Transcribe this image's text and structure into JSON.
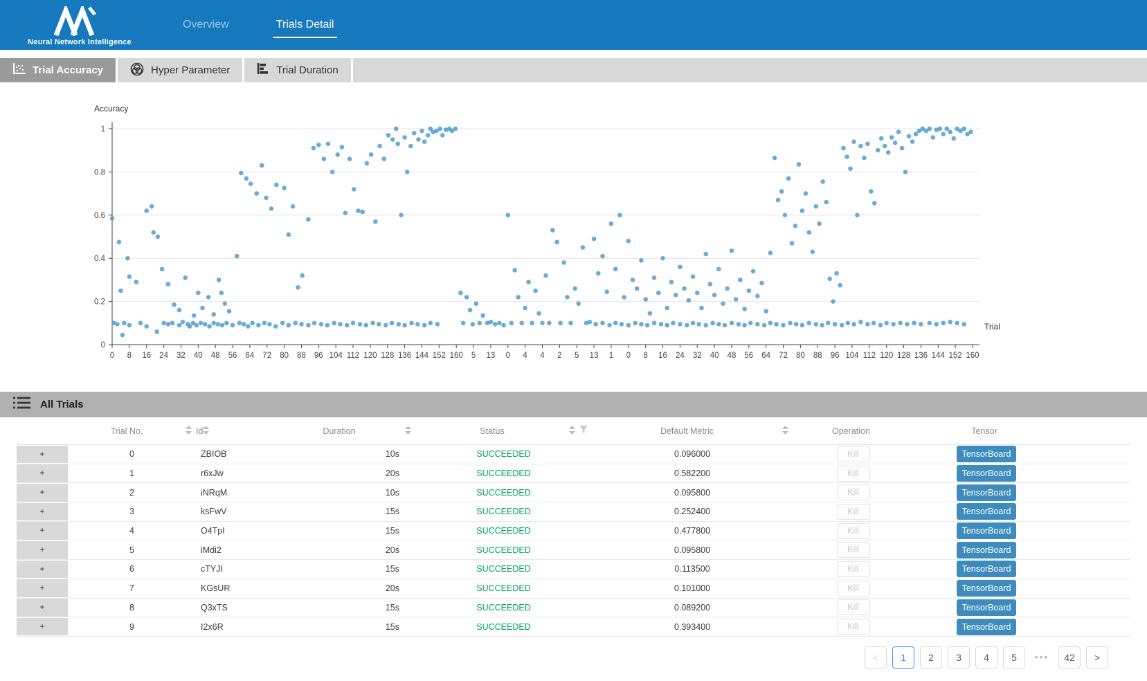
{
  "colors": {
    "brand_blue": "#1779bd",
    "point_blue": "#4f9dce",
    "status_green": "#00a45a",
    "tensorboard_blue": "#3e8cbd",
    "pagination_active_blue": "#2f96f5"
  },
  "header": {
    "logo": "nni-logo",
    "brand_caption": "Neural Network Intelligence",
    "tabs": [
      {
        "label": "Overview",
        "active": false
      },
      {
        "label": "Trials Detail",
        "active": true
      }
    ]
  },
  "subtabs": [
    {
      "label": "Trial Accuracy",
      "icon": "scatter-icon",
      "active": true
    },
    {
      "label": "Hyper Parameter",
      "icon": "venn-icon",
      "active": false
    },
    {
      "label": "Trial Duration",
      "icon": "duration-bars-icon",
      "active": false
    }
  ],
  "chart_data": {
    "type": "scatter",
    "title": "",
    "ylabel": "Accuracy",
    "xlabel": "Trial",
    "ylim": [
      0,
      1
    ],
    "grid": true,
    "y_ticks": [
      "0",
      "0.2",
      "0.4",
      "0.6",
      "0.8",
      "1"
    ],
    "x_tick_labels": [
      "0",
      "8",
      "16",
      "24",
      "32",
      "40",
      "48",
      "56",
      "64",
      "72",
      "80",
      "88",
      "96",
      "104",
      "112",
      "120",
      "128",
      "136",
      "144",
      "152",
      "160",
      "5",
      "13",
      "0",
      "4",
      "4",
      "2",
      "5",
      "13",
      "1",
      "0",
      "8",
      "16",
      "24",
      "32",
      "40",
      "48",
      "56",
      "64",
      "72",
      "80",
      "88",
      "96",
      "104",
      "112",
      "120",
      "128",
      "136",
      "144",
      "152",
      "160"
    ],
    "points": [
      [
        0,
        0.585
      ],
      [
        0.008,
        0.475
      ],
      [
        0.01,
        0.25
      ],
      [
        0.018,
        0.4
      ],
      [
        0.02,
        0.315
      ],
      [
        0.028,
        0.29
      ],
      [
        0.04,
        0.62
      ],
      [
        0.046,
        0.64
      ],
      [
        0.048,
        0.52
      ],
      [
        0.053,
        0.5
      ],
      [
        0.058,
        0.35
      ],
      [
        0.065,
        0.28
      ],
      [
        0.072,
        0.185
      ],
      [
        0.078,
        0.16
      ],
      [
        0.085,
        0.31
      ],
      [
        0.095,
        0.135
      ],
      [
        0.1,
        0.24
      ],
      [
        0.105,
        0.17
      ],
      [
        0.112,
        0.22
      ],
      [
        0.118,
        0.14
      ],
      [
        0.124,
        0.3
      ],
      [
        0.127,
        0.24
      ],
      [
        0.131,
        0.19
      ],
      [
        0.136,
        0.155
      ],
      [
        0.145,
        0.41
      ],
      [
        0.15,
        0.795
      ],
      [
        0.156,
        0.77
      ],
      [
        0.161,
        0.745
      ],
      [
        0.168,
        0.7
      ],
      [
        0.174,
        0.83
      ],
      [
        0.179,
        0.68
      ],
      [
        0.185,
        0.63
      ],
      [
        0.191,
        0.74
      ],
      [
        0.2,
        0.725
      ],
      [
        0.205,
        0.51
      ],
      [
        0.21,
        0.64
      ],
      [
        0.216,
        0.265
      ],
      [
        0.221,
        0.32
      ],
      [
        0.228,
        0.58
      ],
      [
        0.234,
        0.91
      ],
      [
        0.24,
        0.925
      ],
      [
        0.246,
        0.86
      ],
      [
        0.251,
        0.93
      ],
      [
        0.256,
        0.8
      ],
      [
        0.262,
        0.88
      ],
      [
        0.267,
        0.915
      ],
      [
        0.271,
        0.61
      ],
      [
        0.276,
        0.86
      ],
      [
        0.281,
        0.72
      ],
      [
        0.286,
        0.62
      ],
      [
        0.291,
        0.615
      ],
      [
        0.296,
        0.84
      ],
      [
        0.301,
        0.88
      ],
      [
        0.306,
        0.57
      ],
      [
        0.311,
        0.92
      ],
      [
        0.316,
        0.86
      ],
      [
        0.321,
        0.97
      ],
      [
        0.326,
        0.95
      ],
      [
        0.33,
        1.0
      ],
      [
        0.332,
        0.93
      ],
      [
        0.336,
        0.6
      ],
      [
        0.34,
        0.96
      ],
      [
        0.343,
        0.8
      ],
      [
        0.347,
        0.92
      ],
      [
        0.351,
        0.98
      ],
      [
        0.356,
        0.95
      ],
      [
        0.36,
        0.99
      ],
      [
        0.363,
        0.94
      ],
      [
        0.367,
        0.97
      ],
      [
        0.37,
        1.0
      ],
      [
        0.373,
        0.985
      ],
      [
        0.377,
        0.99
      ],
      [
        0.381,
        1.0
      ],
      [
        0.384,
        0.97
      ],
      [
        0.388,
        0.995
      ],
      [
        0.392,
        1.0
      ],
      [
        0.395,
        0.99
      ],
      [
        0.399,
        1.0
      ],
      [
        0.002,
        0.1
      ],
      [
        0.006,
        0.095
      ],
      [
        0.012,
        0.045
      ],
      [
        0.014,
        0.1
      ],
      [
        0.02,
        0.09
      ],
      [
        0.033,
        0.1
      ],
      [
        0.04,
        0.085
      ],
      [
        0.052,
        0.06
      ],
      [
        0.06,
        0.1
      ],
      [
        0.065,
        0.095
      ],
      [
        0.07,
        0.1
      ],
      [
        0.078,
        0.09
      ],
      [
        0.082,
        0.105
      ],
      [
        0.088,
        0.095
      ],
      [
        0.09,
        0.085
      ],
      [
        0.094,
        0.1
      ],
      [
        0.098,
        0.09
      ],
      [
        0.103,
        0.1
      ],
      [
        0.108,
        0.095
      ],
      [
        0.113,
        0.085
      ],
      [
        0.118,
        0.1
      ],
      [
        0.123,
        0.095
      ],
      [
        0.128,
        0.09
      ],
      [
        0.133,
        0.1
      ],
      [
        0.14,
        0.09
      ],
      [
        0.148,
        0.1
      ],
      [
        0.153,
        0.095
      ],
      [
        0.158,
        0.085
      ],
      [
        0.163,
        0.1
      ],
      [
        0.17,
        0.09
      ],
      [
        0.177,
        0.1
      ],
      [
        0.183,
        0.095
      ],
      [
        0.19,
        0.085
      ],
      [
        0.198,
        0.1
      ],
      [
        0.205,
        0.09
      ],
      [
        0.213,
        0.1
      ],
      [
        0.22,
        0.095
      ],
      [
        0.228,
        0.09
      ],
      [
        0.235,
        0.1
      ],
      [
        0.243,
        0.095
      ],
      [
        0.25,
        0.09
      ],
      [
        0.258,
        0.1
      ],
      [
        0.265,
        0.095
      ],
      [
        0.273,
        0.09
      ],
      [
        0.28,
        0.1
      ],
      [
        0.288,
        0.095
      ],
      [
        0.295,
        0.09
      ],
      [
        0.303,
        0.1
      ],
      [
        0.31,
        0.095
      ],
      [
        0.318,
        0.09
      ],
      [
        0.325,
        0.1
      ],
      [
        0.333,
        0.095
      ],
      [
        0.34,
        0.09
      ],
      [
        0.348,
        0.1
      ],
      [
        0.355,
        0.095
      ],
      [
        0.363,
        0.09
      ],
      [
        0.37,
        0.1
      ],
      [
        0.378,
        0.095
      ],
      [
        0.405,
        0.24
      ],
      [
        0.408,
        0.1
      ],
      [
        0.412,
        0.22
      ],
      [
        0.416,
        0.16
      ],
      [
        0.419,
        0.095
      ],
      [
        0.423,
        0.19
      ],
      [
        0.427,
        0.1
      ],
      [
        0.431,
        0.135
      ],
      [
        0.436,
        0.1
      ],
      [
        0.44,
        0.105
      ],
      [
        0.445,
        0.095
      ],
      [
        0.45,
        0.1
      ],
      [
        0.455,
        0.09
      ],
      [
        0.46,
        0.6
      ],
      [
        0.464,
        0.1
      ],
      [
        0.468,
        0.345
      ],
      [
        0.472,
        0.22
      ],
      [
        0.476,
        0.1
      ],
      [
        0.48,
        0.17
      ],
      [
        0.484,
        0.29
      ],
      [
        0.488,
        0.1
      ],
      [
        0.492,
        0.25
      ],
      [
        0.496,
        0.145
      ],
      [
        0.5,
        0.1
      ],
      [
        0.504,
        0.32
      ],
      [
        0.508,
        0.1
      ],
      [
        0.512,
        0.53
      ],
      [
        0.517,
        0.475
      ],
      [
        0.521,
        0.1
      ],
      [
        0.525,
        0.38
      ],
      [
        0.529,
        0.22
      ],
      [
        0.533,
        0.1
      ],
      [
        0.538,
        0.26
      ],
      [
        0.542,
        0.19
      ],
      [
        0.547,
        0.45
      ],
      [
        0.551,
        0.1
      ],
      [
        0.555,
        0.105
      ],
      [
        0.56,
        0.49
      ],
      [
        0.565,
        0.33
      ],
      [
        0.57,
        0.41
      ],
      [
        0.575,
        0.245
      ],
      [
        0.58,
        0.56
      ],
      [
        0.585,
        0.35
      ],
      [
        0.59,
        0.6
      ],
      [
        0.595,
        0.22
      ],
      [
        0.6,
        0.48
      ],
      [
        0.605,
        0.3
      ],
      [
        0.61,
        0.26
      ],
      [
        0.615,
        0.39
      ],
      [
        0.62,
        0.21
      ],
      [
        0.625,
        0.145
      ],
      [
        0.63,
        0.31
      ],
      [
        0.635,
        0.24
      ],
      [
        0.64,
        0.4
      ],
      [
        0.645,
        0.17
      ],
      [
        0.65,
        0.29
      ],
      [
        0.655,
        0.23
      ],
      [
        0.66,
        0.36
      ],
      [
        0.665,
        0.26
      ],
      [
        0.67,
        0.205
      ],
      [
        0.675,
        0.315
      ],
      [
        0.68,
        0.24
      ],
      [
        0.685,
        0.17
      ],
      [
        0.69,
        0.42
      ],
      [
        0.695,
        0.28
      ],
      [
        0.7,
        0.23
      ],
      [
        0.705,
        0.35
      ],
      [
        0.71,
        0.19
      ],
      [
        0.715,
        0.26
      ],
      [
        0.72,
        0.435
      ],
      [
        0.725,
        0.21
      ],
      [
        0.73,
        0.3
      ],
      [
        0.735,
        0.165
      ],
      [
        0.74,
        0.25
      ],
      [
        0.745,
        0.34
      ],
      [
        0.75,
        0.225
      ],
      [
        0.755,
        0.285
      ],
      [
        0.76,
        0.155
      ],
      [
        0.765,
        0.425
      ],
      [
        0.562,
        0.095
      ],
      [
        0.57,
        0.1
      ],
      [
        0.578,
        0.09
      ],
      [
        0.585,
        0.1
      ],
      [
        0.592,
        0.095
      ],
      [
        0.6,
        0.09
      ],
      [
        0.608,
        0.1
      ],
      [
        0.615,
        0.095
      ],
      [
        0.622,
        0.09
      ],
      [
        0.63,
        0.1
      ],
      [
        0.638,
        0.095
      ],
      [
        0.645,
        0.09
      ],
      [
        0.652,
        0.1
      ],
      [
        0.66,
        0.095
      ],
      [
        0.668,
        0.09
      ],
      [
        0.675,
        0.1
      ],
      [
        0.682,
        0.095
      ],
      [
        0.69,
        0.09
      ],
      [
        0.698,
        0.1
      ],
      [
        0.705,
        0.095
      ],
      [
        0.712,
        0.09
      ],
      [
        0.72,
        0.1
      ],
      [
        0.728,
        0.095
      ],
      [
        0.735,
        0.09
      ],
      [
        0.742,
        0.1
      ],
      [
        0.75,
        0.095
      ],
      [
        0.758,
        0.09
      ],
      [
        0.765,
        0.1
      ],
      [
        0.772,
        0.095
      ],
      [
        0.78,
        0.09
      ],
      [
        0.788,
        0.1
      ],
      [
        0.795,
        0.095
      ],
      [
        0.802,
        0.09
      ],
      [
        0.81,
        0.1
      ],
      [
        0.818,
        0.095
      ],
      [
        0.825,
        0.09
      ],
      [
        0.832,
        0.1
      ],
      [
        0.84,
        0.095
      ],
      [
        0.848,
        0.09
      ],
      [
        0.855,
        0.1
      ],
      [
        0.862,
        0.095
      ],
      [
        0.87,
        0.105
      ],
      [
        0.878,
        0.095
      ],
      [
        0.885,
        0.1
      ],
      [
        0.893,
        0.09
      ],
      [
        0.9,
        0.1
      ],
      [
        0.908,
        0.095
      ],
      [
        0.916,
        0.1
      ],
      [
        0.924,
        0.095
      ],
      [
        0.932,
        0.1
      ],
      [
        0.94,
        0.095
      ],
      [
        0.95,
        0.1
      ],
      [
        0.958,
        0.095
      ],
      [
        0.966,
        0.1
      ],
      [
        0.974,
        0.105
      ],
      [
        0.982,
        0.1
      ],
      [
        0.99,
        0.095
      ],
      [
        0.77,
        0.865
      ],
      [
        0.774,
        0.67
      ],
      [
        0.778,
        0.71
      ],
      [
        0.782,
        0.6
      ],
      [
        0.786,
        0.77
      ],
      [
        0.79,
        0.47
      ],
      [
        0.794,
        0.55
      ],
      [
        0.798,
        0.835
      ],
      [
        0.802,
        0.62
      ],
      [
        0.806,
        0.7
      ],
      [
        0.81,
        0.52
      ],
      [
        0.814,
        0.43
      ],
      [
        0.818,
        0.64
      ],
      [
        0.822,
        0.56
      ],
      [
        0.826,
        0.755
      ],
      [
        0.83,
        0.66
      ],
      [
        0.834,
        0.305
      ],
      [
        0.838,
        0.2
      ],
      [
        0.842,
        0.33
      ],
      [
        0.846,
        0.275
      ],
      [
        0.85,
        0.91
      ],
      [
        0.854,
        0.87
      ],
      [
        0.858,
        0.815
      ],
      [
        0.862,
        0.94
      ],
      [
        0.866,
        0.6
      ],
      [
        0.87,
        0.92
      ],
      [
        0.874,
        0.865
      ],
      [
        0.878,
        0.93
      ],
      [
        0.882,
        0.71
      ],
      [
        0.886,
        0.655
      ],
      [
        0.89,
        0.9
      ],
      [
        0.894,
        0.955
      ],
      [
        0.898,
        0.92
      ],
      [
        0.902,
        0.89
      ],
      [
        0.906,
        0.96
      ],
      [
        0.91,
        0.935
      ],
      [
        0.914,
        0.985
      ],
      [
        0.918,
        0.91
      ],
      [
        0.922,
        0.8
      ],
      [
        0.926,
        0.965
      ],
      [
        0.93,
        0.94
      ],
      [
        0.934,
        0.975
      ],
      [
        0.938,
        0.99
      ],
      [
        0.942,
        1.0
      ],
      [
        0.946,
        0.99
      ],
      [
        0.95,
        1.0
      ],
      [
        0.954,
        0.96
      ],
      [
        0.958,
        0.995
      ],
      [
        0.962,
        1.0
      ],
      [
        0.966,
        0.975
      ],
      [
        0.97,
        1.0
      ],
      [
        0.974,
        0.985
      ],
      [
        0.978,
        0.955
      ],
      [
        0.982,
        1.0
      ],
      [
        0.986,
        0.99
      ],
      [
        0.99,
        1.0
      ],
      [
        0.994,
        0.975
      ],
      [
        0.998,
        0.985
      ]
    ]
  },
  "table": {
    "section_title": "All Trials",
    "expand_symbol": "+",
    "columns": [
      {
        "label": "Trial No.",
        "sortable": true
      },
      {
        "label": "Id",
        "sortable": true
      },
      {
        "label": "Duration",
        "sortable": true
      },
      {
        "label": "Status",
        "sortable": true,
        "filterable": true
      },
      {
        "label": "Default Metric",
        "sortable": true
      },
      {
        "label": "Operation",
        "sortable": false
      },
      {
        "label": "Tensor",
        "sortable": false
      }
    ],
    "ops": {
      "kill_label": "Kill",
      "tensorboard_label": "TensorBoard"
    },
    "rows": [
      {
        "trial_no": "0",
        "id": "ZBIOB",
        "duration": "10s",
        "status": "SUCCEEDED",
        "metric": "0.096000"
      },
      {
        "trial_no": "1",
        "id": "r6xJw",
        "duration": "20s",
        "status": "SUCCEEDED",
        "metric": "0.582200"
      },
      {
        "trial_no": "2",
        "id": "iNRqM",
        "duration": "10s",
        "status": "SUCCEEDED",
        "metric": "0.095800"
      },
      {
        "trial_no": "3",
        "id": "ksFwV",
        "duration": "15s",
        "status": "SUCCEEDED",
        "metric": "0.252400"
      },
      {
        "trial_no": "4",
        "id": "O4TpI",
        "duration": "15s",
        "status": "SUCCEEDED",
        "metric": "0.477800"
      },
      {
        "trial_no": "5",
        "id": "iMdi2",
        "duration": "20s",
        "status": "SUCCEEDED",
        "metric": "0.095800"
      },
      {
        "trial_no": "6",
        "id": "cTYJI",
        "duration": "15s",
        "status": "SUCCEEDED",
        "metric": "0.113500"
      },
      {
        "trial_no": "7",
        "id": "KGsUR",
        "duration": "20s",
        "status": "SUCCEEDED",
        "metric": "0.101000"
      },
      {
        "trial_no": "8",
        "id": "Q3xTS",
        "duration": "15s",
        "status": "SUCCEEDED",
        "metric": "0.089200"
      },
      {
        "trial_no": "9",
        "id": "I2x6R",
        "duration": "15s",
        "status": "SUCCEEDED",
        "metric": "0.393400"
      }
    ]
  },
  "pagination": {
    "items": [
      {
        "label": "<",
        "type": "prev",
        "disabled": true
      },
      {
        "label": "1",
        "type": "page",
        "active": true
      },
      {
        "label": "2",
        "type": "page"
      },
      {
        "label": "3",
        "type": "page"
      },
      {
        "label": "4",
        "type": "page"
      },
      {
        "label": "5",
        "type": "page"
      },
      {
        "label": "•••",
        "type": "ellipsis"
      },
      {
        "label": "42",
        "type": "page"
      },
      {
        "label": ">",
        "type": "next"
      }
    ]
  }
}
